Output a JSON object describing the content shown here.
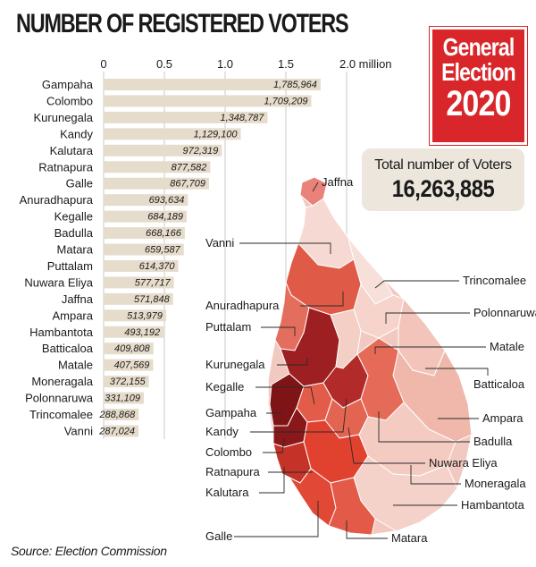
{
  "title": "NUMBER OF REGISTERED VOTERS",
  "badge": {
    "line1": "General",
    "line2": "Election",
    "line3": "2020"
  },
  "total": {
    "label": "Total number of Voters",
    "value": "16,263,885"
  },
  "source": "Source: Election Commission",
  "colors": {
    "bar": "#e6dccb",
    "accent": "#d9262a",
    "grid": "#c8c8c8"
  },
  "chart_data": {
    "type": "bar",
    "orientation": "horizontal",
    "title": "NUMBER OF REGISTERED VOTERS",
    "xlim": [
      0,
      2.0
    ],
    "xunit": "million",
    "ticks": [
      {
        "value": 0,
        "label": "0"
      },
      {
        "value": 0.5,
        "label": "0.5"
      },
      {
        "value": 1.0,
        "label": "1.0"
      },
      {
        "value": 1.5,
        "label": "1.5"
      },
      {
        "value": 2.0,
        "label": "2.0 million"
      }
    ],
    "grid": true,
    "categories": [
      "Gampaha",
      "Colombo",
      "Kurunegala",
      "Kandy",
      "Kalutara",
      "Ratnapura",
      "Galle",
      "Anuradhapura",
      "Kegalle",
      "Badulla",
      "Matara",
      "Puttalam",
      "Nuwara Eliya",
      "Jaffna",
      "Ampara",
      "Hambantota",
      "Batticaloa",
      "Matale",
      "Moneragala",
      "Polonnaruwa",
      "Trincomalee",
      "Vanni"
    ],
    "values": [
      1785964,
      1709209,
      1348787,
      1129100,
      972319,
      877582,
      867709,
      693634,
      684189,
      668166,
      659587,
      614370,
      577717,
      571848,
      513979,
      493192,
      409808,
      407569,
      372155,
      331109,
      288868,
      287024
    ],
    "value_labels": [
      "1,785,964",
      "1,709,209",
      "1,348,787",
      "1,129,100",
      "972,319",
      "877,582",
      "867,709",
      "693,634",
      "684,189",
      "668,166",
      "659,587",
      "614,370",
      "577,717",
      "571,848",
      "513,979",
      "493,192",
      "409,808",
      "407,569",
      "372,155",
      "331,109",
      "288,868",
      "287,024"
    ]
  },
  "map": {
    "labels": [
      "Jaffna",
      "Vanni",
      "Trincomalee",
      "Anuradhapura",
      "Polonnaruwa",
      "Puttalam",
      "Matale",
      "Kurunegala",
      "Batticaloa",
      "Kegalle",
      "Gampaha",
      "Ampara",
      "Kandy",
      "Badulla",
      "Colombo",
      "Nuwara Eliya",
      "Ratnapura",
      "Moneragala",
      "Kalutara",
      "Hambantota",
      "Galle",
      "Matara"
    ]
  }
}
